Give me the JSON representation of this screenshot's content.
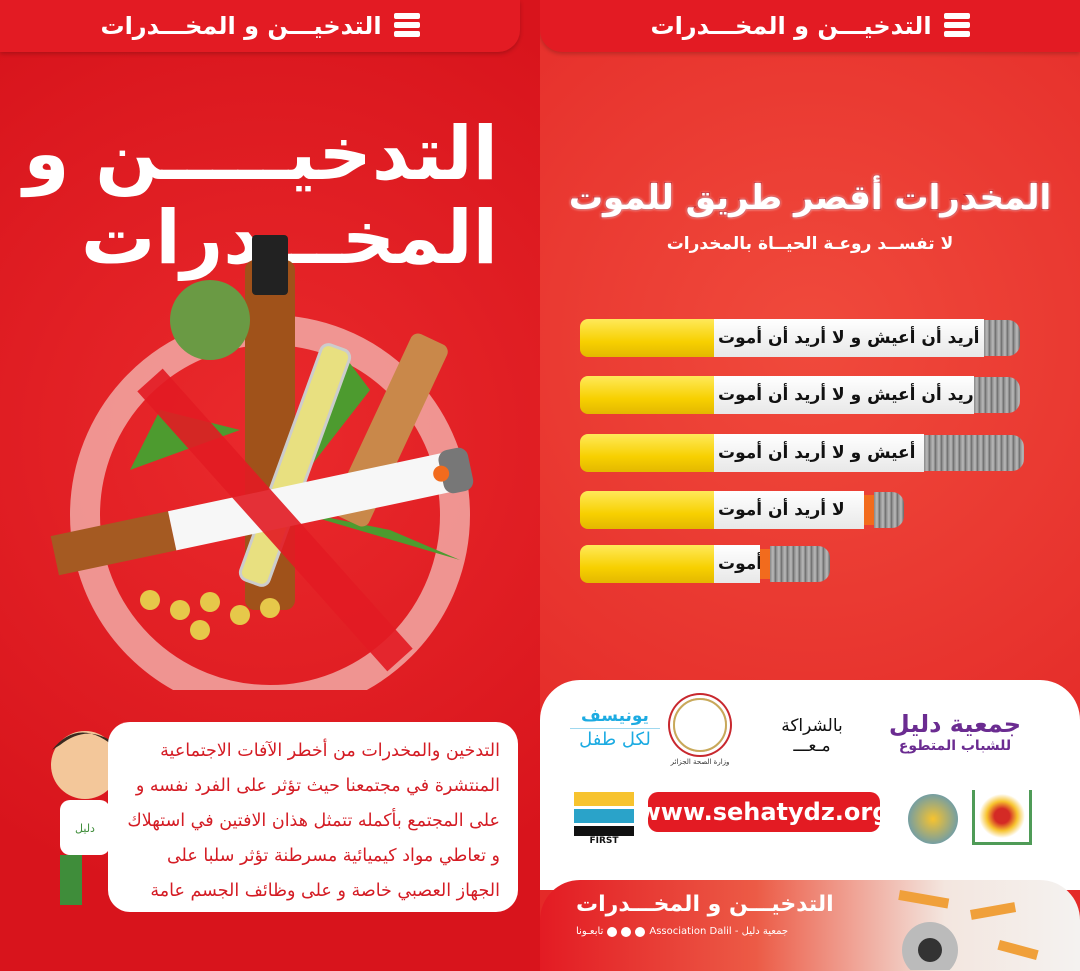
{
  "header": {
    "title": "التدخيـــن و المخـــدرات",
    "logo_text": "FIRST"
  },
  "left": {
    "title_line1": "التدخيـــــن و",
    "title_line2": "المخـــدرات",
    "description": "التدخين والمخدرات من أخطر الآفات الاجتماعية المنتشرة في مجتمعنا حيث تؤثر على الفرد نفسه و على المجتمع بأكمله تتمثل هذان الافتين في استهلاك و تعاطي مواد كيميائية مسرطنة تؤثر سلبا على الجهاز العصبي خاصة و على وظائف الجسم عامة",
    "kid_shirt_text": "دليل"
  },
  "right": {
    "slogan": "المخدرات أقصر طريق للموت",
    "subslogan": "لا تفســد روعـة الحيــاة بالمخدرات",
    "cigarettes": [
      {
        "text": "أنا أريد أن أعيش و لا أريد أن أموت"
      },
      {
        "text": "أريد أن أعيش و لا أريد أن أموت"
      },
      {
        "text": "أعيش و لا أريد أن أموت"
      },
      {
        "text": "لا أريد أن أموت"
      },
      {
        "text": "أموت"
      }
    ],
    "partners": {
      "dalil_name": "جمعية دليل",
      "dalil_sub": "للشباب المتطوع",
      "partnership": "بالشراكة",
      "with": "مـعـــ",
      "ministry": "وزارة الصحة الجزائر",
      "unicef": "يونيسف",
      "unicef_sub": "لكل طفل",
      "url": "www.sehatydz.org",
      "sehaty_logo_text": "FIRST"
    },
    "footer": {
      "title": "التدخيـــن و المخـــدرات",
      "follow": "تابعـونا",
      "association": "جمعية دليل - Association Dalil"
    }
  },
  "colors": {
    "red": "#e31b23",
    "yellow": "#f7d000",
    "unicef": "#1cabe2",
    "dalil_purple": "#6b2c91"
  }
}
